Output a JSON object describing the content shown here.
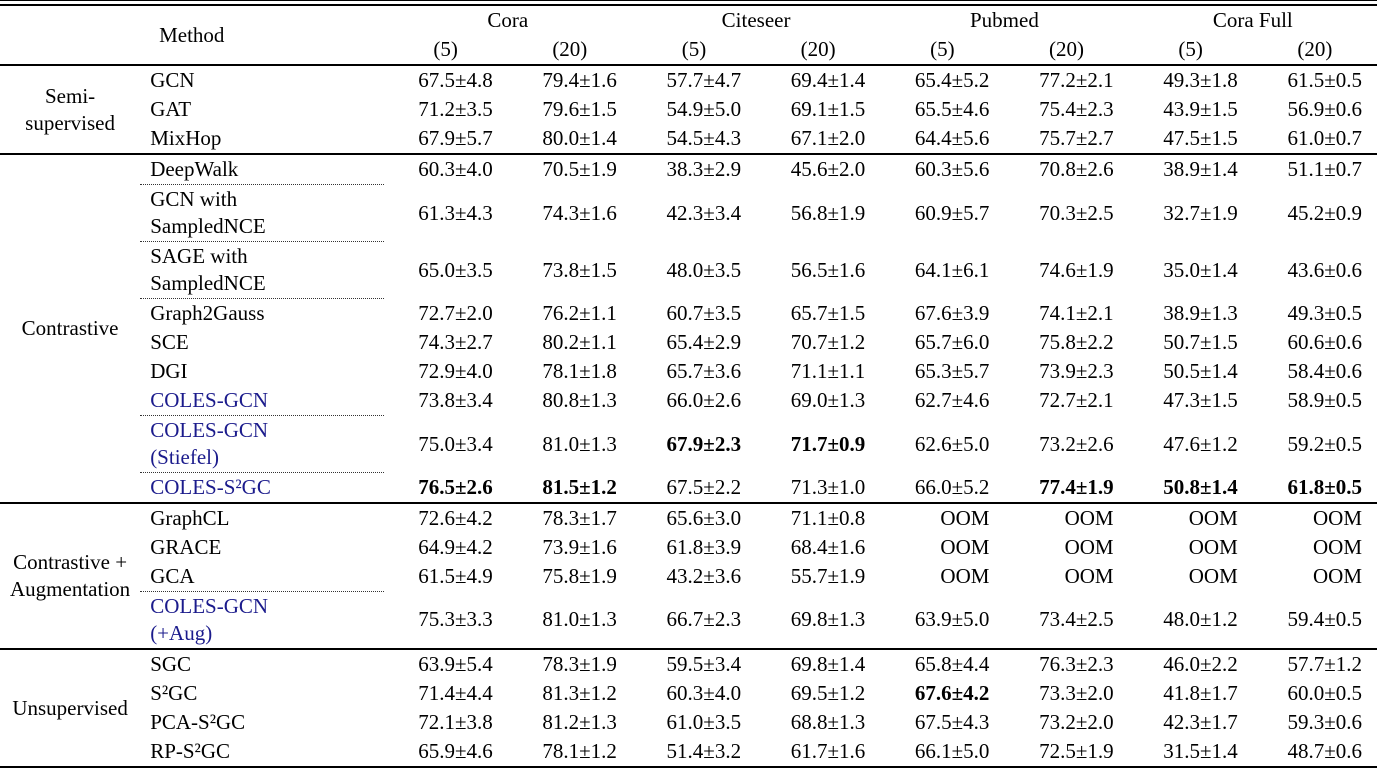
{
  "colors": {
    "accent_blue": "#1b1b8c",
    "text": "#000000",
    "rule": "#000000",
    "dotted_line": "#333333"
  },
  "table": {
    "method_header": "Method",
    "datasets": [
      {
        "name": "Cora",
        "subcols": [
          "(5)",
          "(20)"
        ]
      },
      {
        "name": "Citeseer",
        "subcols": [
          "(5)",
          "(20)"
        ]
      },
      {
        "name": "Pubmed",
        "subcols": [
          "(5)",
          "(20)"
        ]
      },
      {
        "name": "Cora Full",
        "subcols": [
          "(5)",
          "(20)"
        ]
      }
    ],
    "sections": [
      {
        "group": "Semi-\nsupervised",
        "rows": [
          {
            "method": "GCN",
            "accent": false,
            "dashed_above": false,
            "bold": [],
            "values": [
              "67.5±4.8",
              "79.4±1.6",
              "57.7±4.7",
              "69.4±1.4",
              "65.4±5.2",
              "77.2±2.1",
              "49.3±1.8",
              "61.5±0.5"
            ]
          },
          {
            "method": "GAT",
            "accent": false,
            "dashed_above": false,
            "bold": [],
            "values": [
              "71.2±3.5",
              "79.6±1.5",
              "54.9±5.0",
              "69.1±1.5",
              "65.5±4.6",
              "75.4±2.3",
              "43.9±1.5",
              "56.9±0.6"
            ]
          },
          {
            "method": "MixHop",
            "accent": false,
            "dashed_above": false,
            "bold": [],
            "values": [
              "67.9±5.7",
              "80.0±1.4",
              "54.5±4.3",
              "67.1±2.0",
              "64.4±5.6",
              "75.7±2.7",
              "47.5±1.5",
              "61.0±0.7"
            ]
          }
        ]
      },
      {
        "group": "Contrastive",
        "rows": [
          {
            "method": "DeepWalk",
            "accent": false,
            "dashed_above": false,
            "bold": [],
            "values": [
              "60.3±4.0",
              "70.5±1.9",
              "38.3±2.9",
              "45.6±2.0",
              "60.3±5.6",
              "70.8±2.6",
              "38.9±1.4",
              "51.1±0.7"
            ]
          },
          {
            "method": "GCN with\nSampledNCE",
            "accent": false,
            "dashed_above": true,
            "bold": [],
            "values": [
              "61.3±4.3",
              "74.3±1.6",
              "42.3±3.4",
              "56.8±1.9",
              "60.9±5.7",
              "70.3±2.5",
              "32.7±1.9",
              "45.2±0.9"
            ]
          },
          {
            "method": "SAGE with\nSampledNCE",
            "accent": false,
            "dashed_above": true,
            "bold": [],
            "values": [
              "65.0±3.5",
              "73.8±1.5",
              "48.0±3.5",
              "56.5±1.6",
              "64.1±6.1",
              "74.6±1.9",
              "35.0±1.4",
              "43.6±0.6"
            ]
          },
          {
            "method": "Graph2Gauss",
            "accent": false,
            "dashed_above": true,
            "bold": [],
            "values": [
              "72.7±2.0",
              "76.2±1.1",
              "60.7±3.5",
              "65.7±1.5",
              "67.6±3.9",
              "74.1±2.1",
              "38.9±1.3",
              "49.3±0.5"
            ]
          },
          {
            "method": "SCE",
            "accent": false,
            "dashed_above": false,
            "bold": [],
            "values": [
              "74.3±2.7",
              "80.2±1.1",
              "65.4±2.9",
              "70.7±1.2",
              "65.7±6.0",
              "75.8±2.2",
              "50.7±1.5",
              "60.6±0.6"
            ]
          },
          {
            "method": "DGI",
            "accent": false,
            "dashed_above": false,
            "bold": [],
            "values": [
              "72.9±4.0",
              "78.1±1.8",
              "65.7±3.6",
              "71.1±1.1",
              "65.3±5.7",
              "73.9±2.3",
              "50.5±1.4",
              "58.4±0.6"
            ]
          },
          {
            "method": "COLES-GCN",
            "accent": true,
            "dashed_above": false,
            "bold": [],
            "values": [
              "73.8±3.4",
              "80.8±1.3",
              "66.0±2.6",
              "69.0±1.3",
              "62.7±4.6",
              "72.7±2.1",
              "47.3±1.5",
              "58.9±0.5"
            ]
          },
          {
            "method": "COLES-GCN\n(Stiefel)",
            "accent": true,
            "dashed_above": true,
            "bold": [
              2,
              3
            ],
            "values": [
              "75.0±3.4",
              "81.0±1.3",
              "67.9±2.3",
              "71.7±0.9",
              "62.6±5.0",
              "73.2±2.6",
              "47.6±1.2",
              "59.2±0.5"
            ]
          },
          {
            "method": "COLES-S²GC",
            "accent": true,
            "dashed_above": true,
            "bold": [
              0,
              1,
              5,
              6,
              7
            ],
            "values": [
              "76.5±2.6",
              "81.5±1.2",
              "67.5±2.2",
              "71.3±1.0",
              "66.0±5.2",
              "77.4±1.9",
              "50.8±1.4",
              "61.8±0.5"
            ]
          }
        ]
      },
      {
        "group": "Contrastive +\nAugmentation",
        "rows": [
          {
            "method": "GraphCL",
            "accent": false,
            "dashed_above": false,
            "bold": [],
            "values": [
              "72.6±4.2",
              "78.3±1.7",
              "65.6±3.0",
              "71.1±0.8",
              "OOM",
              "OOM",
              "OOM",
              "OOM"
            ]
          },
          {
            "method": "GRACE",
            "accent": false,
            "dashed_above": false,
            "bold": [],
            "values": [
              "64.9±4.2",
              "73.9±1.6",
              "61.8±3.9",
              "68.4±1.6",
              "OOM",
              "OOM",
              "OOM",
              "OOM"
            ]
          },
          {
            "method": "GCA",
            "accent": false,
            "dashed_above": false,
            "bold": [],
            "values": [
              "61.5±4.9",
              "75.8±1.9",
              "43.2±3.6",
              "55.7±1.9",
              "OOM",
              "OOM",
              "OOM",
              "OOM"
            ]
          },
          {
            "method": "COLES-GCN\n(+Aug)",
            "accent": true,
            "dashed_above": true,
            "bold": [],
            "values": [
              "75.3±3.3",
              "81.0±1.3",
              "66.7±2.3",
              "69.8±1.3",
              "63.9±5.0",
              "73.4±2.5",
              "48.0±1.2",
              "59.4±0.5"
            ]
          }
        ]
      },
      {
        "group": "Unsupervised",
        "rows": [
          {
            "method": "SGC",
            "accent": false,
            "dashed_above": false,
            "bold": [],
            "values": [
              "63.9±5.4",
              "78.3±1.9",
              "59.5±3.4",
              "69.8±1.4",
              "65.8±4.4",
              "76.3±2.3",
              "46.0±2.2",
              "57.7±1.2"
            ]
          },
          {
            "method": "S²GC",
            "accent": false,
            "dashed_above": false,
            "bold": [
              4
            ],
            "values": [
              "71.4±4.4",
              "81.3±1.2",
              "60.3±4.0",
              "69.5±1.2",
              "67.6±4.2",
              "73.3±2.0",
              "41.8±1.7",
              "60.0±0.5"
            ]
          },
          {
            "method": "PCA-S²GC",
            "accent": false,
            "dashed_above": false,
            "bold": [],
            "values": [
              "72.1±3.8",
              "81.2±1.3",
              "61.0±3.5",
              "68.8±1.3",
              "67.5±4.3",
              "73.2±2.0",
              "42.3±1.7",
              "59.3±0.6"
            ]
          },
          {
            "method": "RP-S²GC",
            "accent": false,
            "dashed_above": false,
            "bold": [],
            "values": [
              "65.9±4.6",
              "78.1±1.2",
              "51.4±3.2",
              "61.7±1.6",
              "66.1±5.0",
              "72.5±1.9",
              "31.5±1.4",
              "48.7±0.6"
            ]
          }
        ]
      }
    ]
  }
}
